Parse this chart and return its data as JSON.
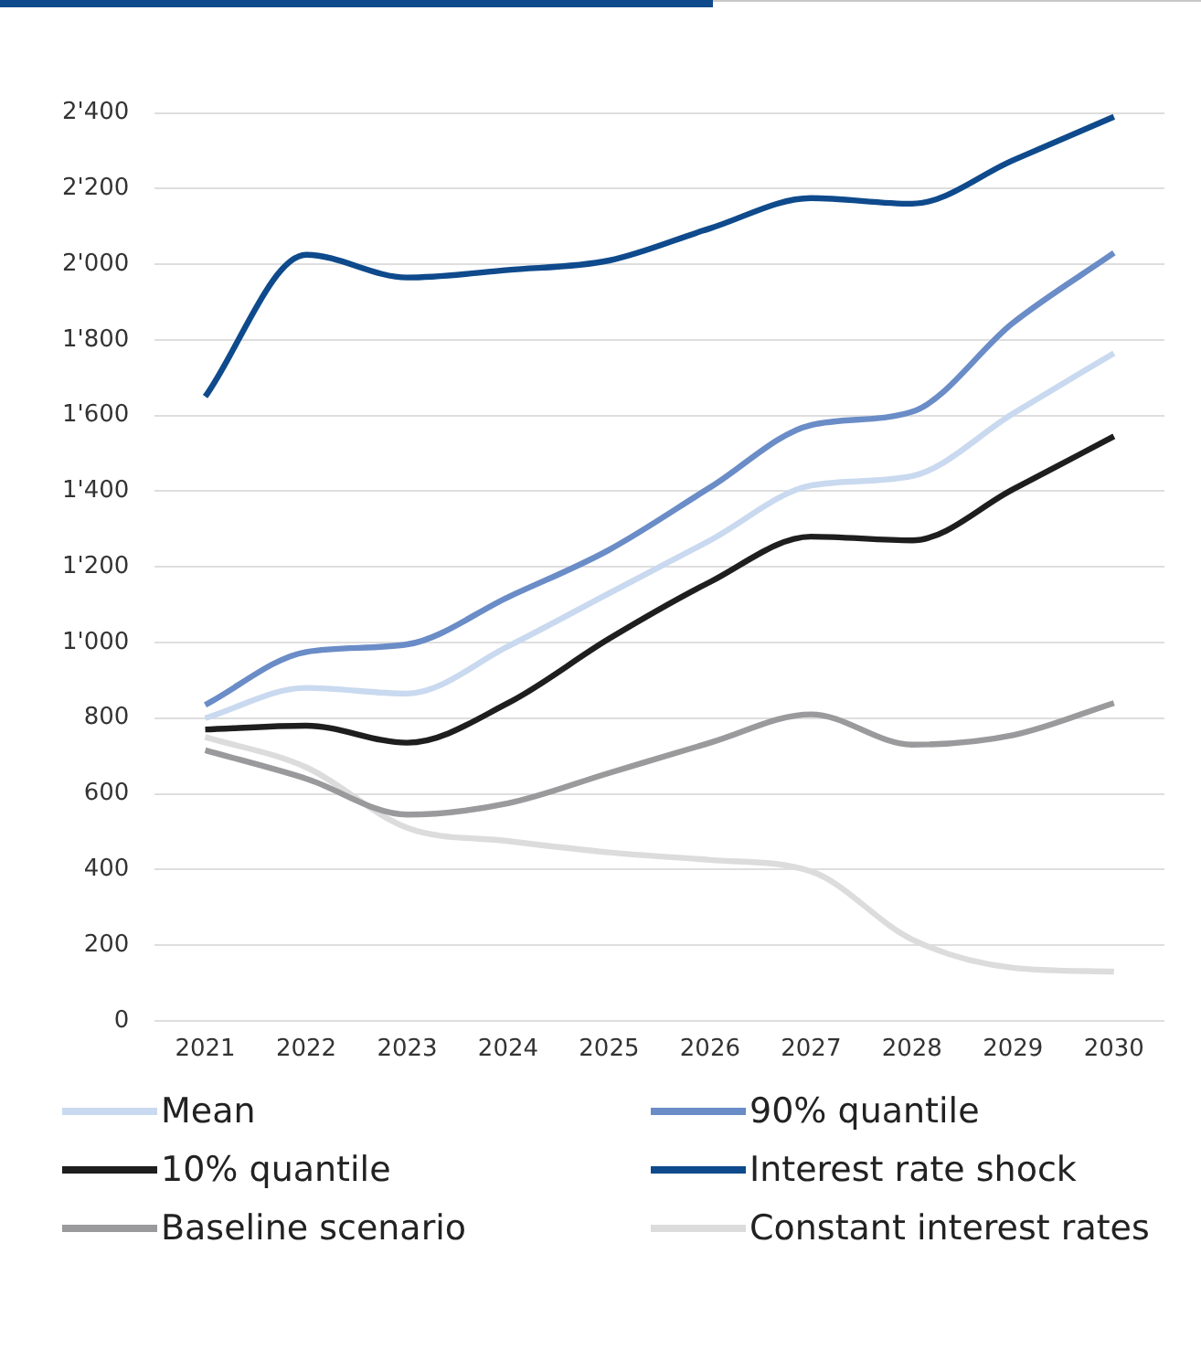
{
  "chart_data": {
    "type": "line",
    "categories": [
      "2021",
      "2022",
      "2023",
      "2024",
      "2025",
      "2026",
      "2027",
      "2028",
      "2029",
      "2030"
    ],
    "series": [
      {
        "name": "Mean",
        "color": "#c9d9ef",
        "values": [
          800,
          880,
          865,
          990,
          1130,
          1270,
          1415,
          1440,
          1605,
          1765
        ]
      },
      {
        "name": "90% quantile",
        "color": "#6a8cc7",
        "values": [
          835,
          975,
          995,
          1120,
          1245,
          1410,
          1575,
          1610,
          1845,
          2030
        ]
      },
      {
        "name": "10% quantile",
        "color": "#1e1e1e",
        "values": [
          770,
          780,
          735,
          840,
          1010,
          1160,
          1280,
          1270,
          1405,
          1545
        ]
      },
      {
        "name": "Interest rate shock",
        "color": "#0e4a8c",
        "values": [
          1650,
          2025,
          1965,
          1985,
          2010,
          2095,
          2175,
          2160,
          2275,
          2390
        ]
      },
      {
        "name": "Baseline scenario",
        "color": "#9a9a9c",
        "values": [
          715,
          640,
          545,
          575,
          655,
          735,
          810,
          730,
          755,
          840
        ]
      },
      {
        "name": "Constant interest rates",
        "color": "#dcdcdc",
        "values": [
          750,
          670,
          510,
          475,
          445,
          425,
          395,
          215,
          140,
          130
        ]
      }
    ],
    "ylim": [
      0,
      2400
    ],
    "yticks": [
      0,
      200,
      400,
      600,
      800,
      {
        "value": 1000,
        "label": "1'000"
      },
      {
        "value": 1200,
        "label": "1'200"
      },
      {
        "value": 1400,
        "label": "1'400"
      },
      {
        "value": 1600,
        "label": "1'600"
      },
      {
        "value": 1800,
        "label": "1'800"
      },
      {
        "value": 2000,
        "label": "2'000"
      },
      {
        "value": 2200,
        "label": "2'200"
      },
      {
        "value": 2400,
        "label": "2'400"
      }
    ],
    "grid": "y",
    "legend": "bottom",
    "marker": "none",
    "line_style": "solid"
  }
}
